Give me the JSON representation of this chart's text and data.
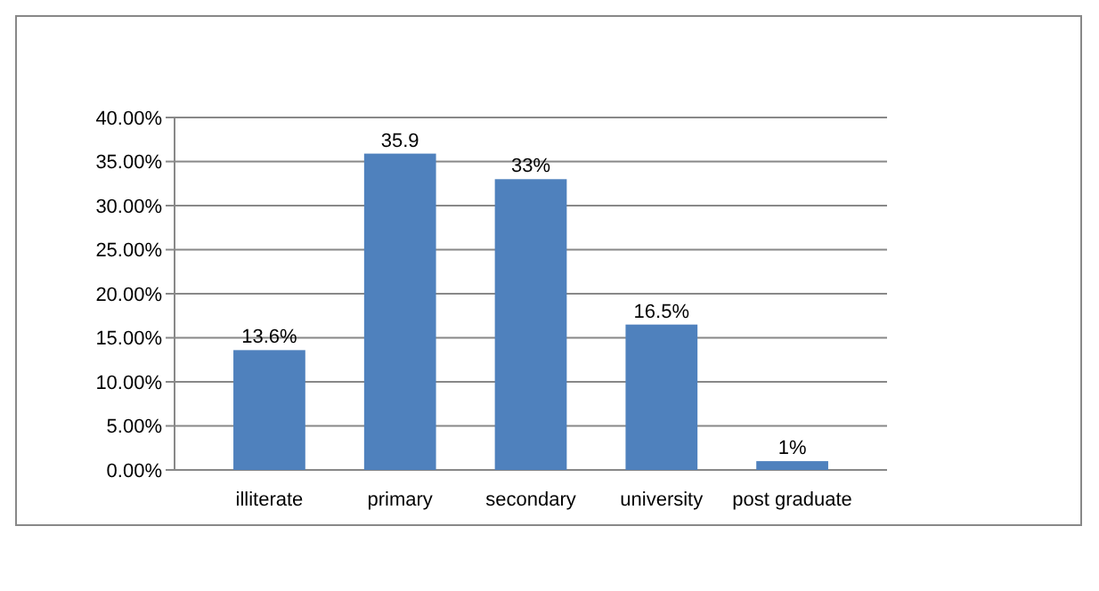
{
  "chart_data": {
    "type": "bar",
    "categories": [
      "illiterate",
      "primary",
      "secondary",
      "university",
      "post graduate"
    ],
    "values": [
      13.6,
      35.9,
      33,
      16.5,
      1
    ],
    "value_labels": [
      "13.6%",
      "35.9",
      "33%",
      "16.5%",
      "1%"
    ],
    "color": "#4f81bd",
    "ylim": [
      0,
      40
    ],
    "yticks": [
      {
        "value": 0,
        "label": "0.00%"
      },
      {
        "value": 5,
        "label": "5.00%"
      },
      {
        "value": 10,
        "label": "10.00%"
      },
      {
        "value": 15,
        "label": "15.00%"
      },
      {
        "value": 20,
        "label": "20.00%"
      },
      {
        "value": 25,
        "label": "25.00%"
      },
      {
        "value": 30,
        "label": "30.00%"
      },
      {
        "value": 35,
        "label": "35.00%"
      },
      {
        "value": 40,
        "label": "40.00%"
      }
    ],
    "grid": true
  }
}
